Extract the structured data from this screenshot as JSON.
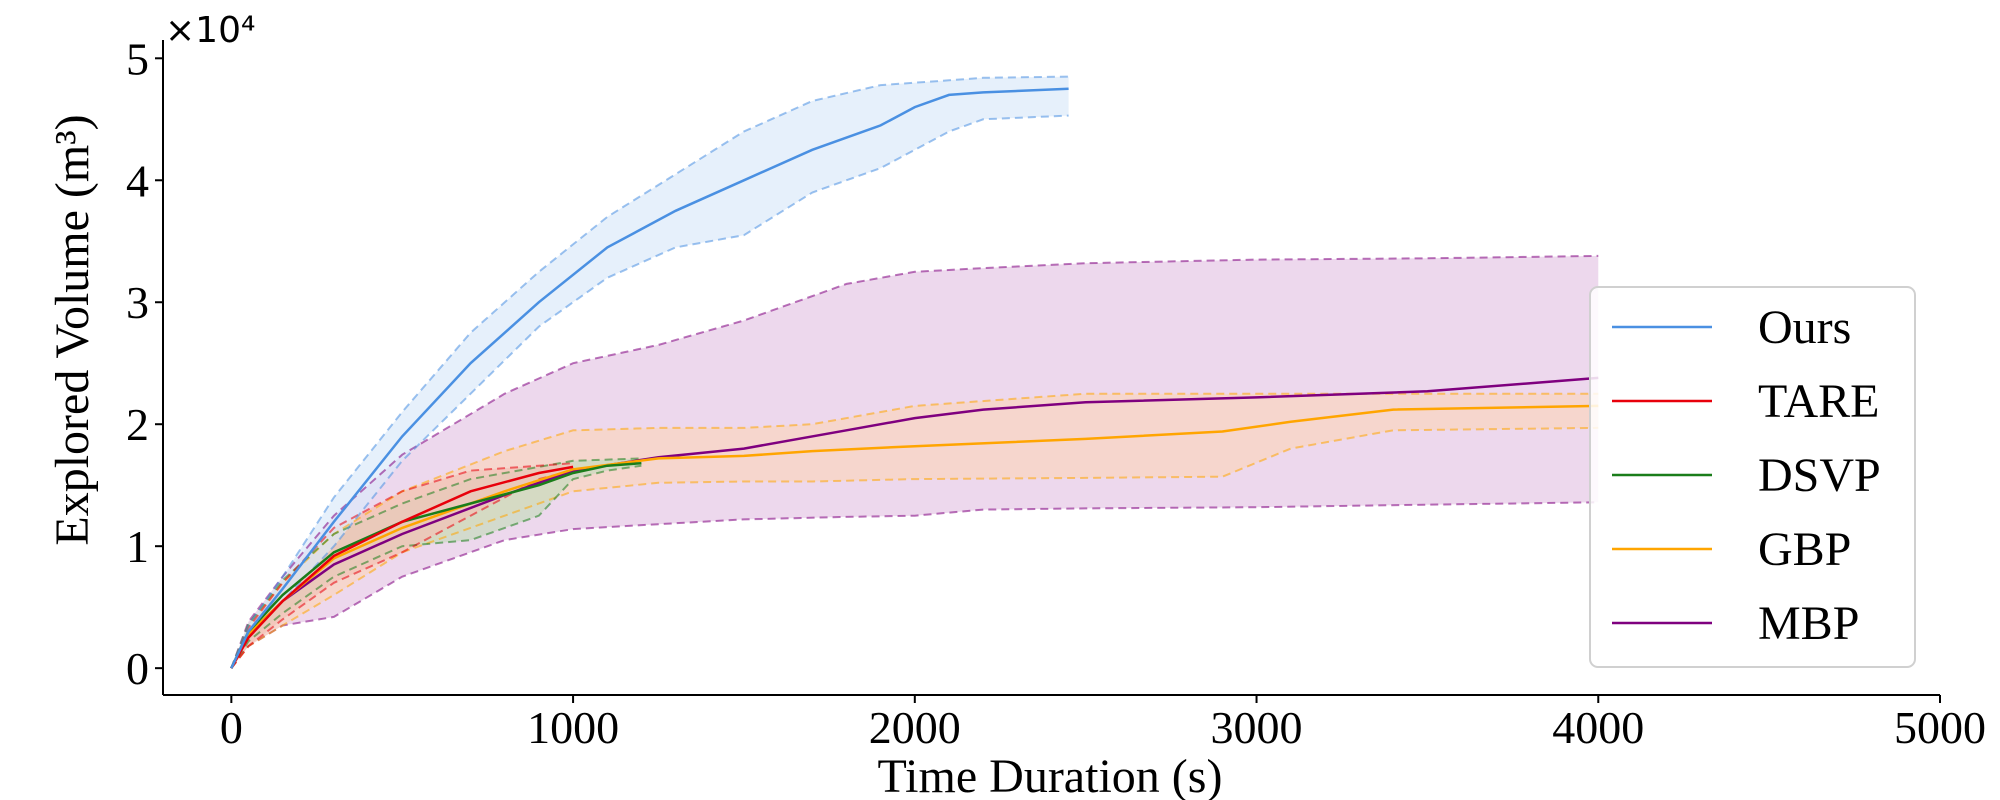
{
  "chart_data": {
    "type": "line",
    "title": "",
    "xlabel": "Time Duration (s)",
    "ylabel": "Explored Volume (m³)",
    "y_multiplier_text": "×10⁴",
    "xlim": [
      -200,
      5000
    ],
    "ylim": [
      -0.22,
      5.15
    ],
    "xticks": [
      0,
      1000,
      2000,
      3000,
      4000,
      5000
    ],
    "xtick_labels": [
      "0",
      "1000",
      "2000",
      "3000",
      "4000",
      "5000"
    ],
    "yticks": [
      0,
      1,
      2,
      3,
      4,
      5
    ],
    "ytick_labels": [
      "0",
      "1",
      "2",
      "3",
      "4",
      "5"
    ],
    "legend_position": "right",
    "series": [
      {
        "name": "MBP",
        "color": "#7f007f",
        "band": "#e6c8e6",
        "x": [
          0,
          50,
          150,
          300,
          500,
          800,
          1000,
          1250,
          1500,
          1800,
          2000,
          2200,
          2500,
          3000,
          3500,
          4000
        ],
        "mean": [
          0,
          0.28,
          0.55,
          0.85,
          1.1,
          1.42,
          1.62,
          1.73,
          1.8,
          1.95,
          2.05,
          2.12,
          2.18,
          2.22,
          2.27,
          2.38
        ],
        "upper": [
          0,
          0.38,
          0.75,
          1.25,
          1.75,
          2.25,
          2.5,
          2.65,
          2.85,
          3.15,
          3.25,
          3.28,
          3.32,
          3.35,
          3.36,
          3.38
        ],
        "lower": [
          0,
          0.18,
          0.35,
          0.42,
          0.75,
          1.05,
          1.14,
          1.18,
          1.22,
          1.24,
          1.25,
          1.3,
          1.31,
          1.32,
          1.34,
          1.36
        ]
      },
      {
        "name": "GBP",
        "color": "#ffa500",
        "band": "#f9d6bf",
        "x": [
          0,
          50,
          150,
          300,
          500,
          800,
          1000,
          1250,
          1500,
          1700,
          2000,
          2500,
          2900,
          3100,
          3400,
          4000
        ],
        "mean": [
          0,
          0.28,
          0.55,
          0.9,
          1.15,
          1.45,
          1.63,
          1.72,
          1.74,
          1.78,
          1.82,
          1.88,
          1.94,
          2.02,
          2.12,
          2.15
        ],
        "upper": [
          0,
          0.35,
          0.7,
          1.1,
          1.45,
          1.78,
          1.95,
          1.97,
          1.97,
          2.0,
          2.15,
          2.25,
          2.25,
          2.25,
          2.25,
          2.25
        ],
        "lower": [
          0,
          0.18,
          0.35,
          0.6,
          0.95,
          1.25,
          1.45,
          1.52,
          1.53,
          1.53,
          1.55,
          1.56,
          1.57,
          1.8,
          1.95,
          1.97
        ]
      },
      {
        "name": "DSVP",
        "color": "#1a7d1a",
        "band": "#c7dcbf",
        "x": [
          0,
          50,
          150,
          300,
          500,
          700,
          900,
          1000,
          1100,
          1200
        ],
        "mean": [
          0,
          0.3,
          0.6,
          0.95,
          1.2,
          1.35,
          1.5,
          1.6,
          1.66,
          1.68
        ],
        "upper": [
          0,
          0.36,
          0.72,
          1.1,
          1.35,
          1.55,
          1.65,
          1.7,
          1.71,
          1.72
        ],
        "lower": [
          0,
          0.22,
          0.45,
          0.75,
          1.0,
          1.05,
          1.25,
          1.55,
          1.62,
          1.66
        ]
      },
      {
        "name": "TARE",
        "color": "#e8000b",
        "band": "#f2c2b6",
        "x": [
          0,
          50,
          150,
          300,
          500,
          700,
          900,
          1000
        ],
        "mean": [
          0,
          0.25,
          0.55,
          0.92,
          1.2,
          1.45,
          1.6,
          1.65
        ],
        "upper": [
          0,
          0.33,
          0.7,
          1.15,
          1.45,
          1.62,
          1.66,
          1.68
        ],
        "lower": [
          0,
          0.18,
          0.4,
          0.7,
          0.95,
          1.25,
          1.55,
          1.62
        ]
      },
      {
        "name": "Ours",
        "color": "#4a90e2",
        "band": "#dce9f9",
        "x": [
          0,
          50,
          150,
          300,
          500,
          700,
          900,
          1100,
          1300,
          1500,
          1700,
          1900,
          2000,
          2100,
          2200,
          2450
        ],
        "mean": [
          0,
          0.3,
          0.65,
          1.2,
          1.9,
          2.5,
          3.0,
          3.45,
          3.75,
          4.0,
          4.25,
          4.45,
          4.6,
          4.7,
          4.72,
          4.75
        ],
        "upper": [
          0,
          0.35,
          0.75,
          1.4,
          2.1,
          2.75,
          3.25,
          3.7,
          4.05,
          4.4,
          4.65,
          4.78,
          4.8,
          4.82,
          4.84,
          4.85
        ],
        "lower": [
          0,
          0.25,
          0.55,
          1.0,
          1.7,
          2.25,
          2.8,
          3.2,
          3.45,
          3.55,
          3.9,
          4.1,
          4.25,
          4.4,
          4.5,
          4.53
        ]
      }
    ],
    "legend": [
      "Ours",
      "TARE",
      "DSVP",
      "GBP",
      "MBP"
    ]
  }
}
